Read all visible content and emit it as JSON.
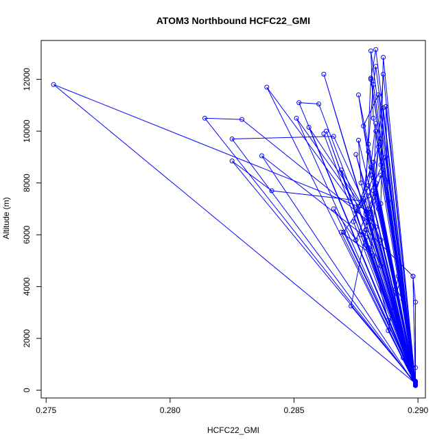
{
  "chart_data": {
    "type": "line",
    "title": "ATOM3 Northbound HCFC22_GMI",
    "xlabel": "HCFC22_GMI",
    "ylabel": "Altitude (m)",
    "xlim": [
      0.2748,
      0.2903
    ],
    "ylim": [
      -300,
      13500
    ],
    "x_ticks": [
      {
        "value": 0.275,
        "label": "0.275"
      },
      {
        "value": 0.28,
        "label": "0.280"
      },
      {
        "value": 0.285,
        "label": "0.285"
      },
      {
        "value": 0.29,
        "label": "0.290"
      }
    ],
    "y_ticks": [
      {
        "value": 0,
        "label": "0"
      },
      {
        "value": 2000,
        "label": "2000"
      },
      {
        "value": 4000,
        "label": "4000"
      },
      {
        "value": 6000,
        "label": "6000"
      },
      {
        "value": 8000,
        "label": "8000"
      },
      {
        "value": 10000,
        "label": "10000"
      },
      {
        "value": 12000,
        "label": "12000"
      }
    ],
    "grid": false,
    "legend": "none",
    "color": "#0000ff",
    "marker": "open-circle",
    "series": [
      {
        "x": [
          0.2899,
          0.2879,
          0.2875,
          0.2882,
          0.2899
        ],
        "y": [
          250,
          5600,
          6900,
          8200,
          300
        ]
      },
      {
        "x": [
          0.2899,
          0.2885,
          0.2879,
          0.2898,
          0.2899
        ],
        "y": [
          200,
          4800,
          6200,
          4400,
          350
        ]
      },
      {
        "x": [
          0.2899,
          0.2873,
          0.288,
          0.2899
        ],
        "y": [
          280,
          3250,
          6600,
          220
        ]
      },
      {
        "x": [
          0.2899,
          0.2888,
          0.2881,
          0.2883,
          0.2899
        ],
        "y": [
          180,
          2700,
          5300,
          7600,
          260
        ]
      },
      {
        "x": [
          0.2899,
          0.2878,
          0.2882,
          0.2885,
          0.2899
        ],
        "y": [
          300,
          6100,
          7300,
          8300,
          210
        ]
      },
      {
        "x": [
          0.2899,
          0.2875,
          0.288,
          0.2886,
          0.2899
        ],
        "y": [
          240,
          5800,
          7000,
          8500,
          240
        ]
      },
      {
        "x": [
          0.2899,
          0.287,
          0.288,
          0.2887,
          0.2899
        ],
        "y": [
          320,
          6100,
          7500,
          9000,
          200
        ]
      },
      {
        "x": [
          0.2899,
          0.2884,
          0.2882,
          0.2885,
          0.2899
        ],
        "y": [
          200,
          7000,
          8800,
          9700,
          280
        ]
      },
      {
        "x": [
          0.2899,
          0.2874,
          0.2881,
          0.2899
        ],
        "y": [
          260,
          6500,
          8600,
          230
        ]
      },
      {
        "x": [
          0.2899,
          0.288,
          0.2883,
          0.2899
        ],
        "y": [
          220,
          7900,
          10300,
          300
        ]
      },
      {
        "x": [
          0.2899,
          0.2885,
          0.2886,
          0.2899
        ],
        "y": [
          310,
          7200,
          10900,
          190
        ]
      },
      {
        "x": [
          0.2899,
          0.2882,
          0.2883,
          0.2899
        ],
        "y": [
          270,
          7700,
          10000,
          260
        ]
      },
      {
        "x": [
          0.2899,
          0.2881,
          0.2884,
          0.2899
        ],
        "y": [
          180,
          6800,
          9400,
          340
        ]
      },
      {
        "x": [
          0.2899,
          0.2878,
          0.288,
          0.2899
        ],
        "y": [
          240,
          7400,
          9200,
          210
        ]
      },
      {
        "x": [
          0.2899,
          0.2888,
          0.2887,
          0.2899
        ],
        "y": [
          300,
          7300,
          10950,
          260
        ]
      },
      {
        "x": [
          0.2899,
          0.2877,
          0.2876,
          0.2899
        ],
        "y": [
          230,
          8000,
          9650,
          230
        ]
      },
      {
        "x": [
          0.2899,
          0.2879,
          0.2875,
          0.2899
        ],
        "y": [
          290,
          7800,
          9100,
          200
        ]
      },
      {
        "x": [
          0.2899,
          0.2869,
          0.2879,
          0.2899
        ],
        "y": [
          200,
          8500,
          6900,
          280
        ]
      },
      {
        "x": [
          0.2899,
          0.2886,
          0.2885,
          0.2899
        ],
        "y": [
          260,
          12850,
          8700,
          310
        ]
      },
      {
        "x": [
          0.2899,
          0.2883,
          0.2881,
          0.2899
        ],
        "y": [
          210,
          13150,
          12000,
          230
        ]
      },
      {
        "x": [
          0.2899,
          0.2881,
          0.2882,
          0.2899
        ],
        "y": [
          330,
          13100,
          10500,
          220
        ]
      },
      {
        "x": [
          0.2899,
          0.2886,
          0.2883,
          0.2899
        ],
        "y": [
          190,
          12200,
          8000,
          260
        ]
      },
      {
        "x": [
          0.2899,
          0.2883,
          0.2882,
          0.2899
        ],
        "y": [
          250,
          12500,
          11800,
          300
        ]
      },
      {
        "x": [
          0.2899,
          0.2881,
          0.2879,
          0.2899
        ],
        "y": [
          280,
          12050,
          7800,
          210
        ]
      },
      {
        "x": [
          0.2899,
          0.2882,
          0.288,
          0.2899
        ],
        "y": [
          240,
          11800,
          9500,
          250
        ]
      },
      {
        "x": [
          0.2899,
          0.2884,
          0.2878,
          0.2899
        ],
        "y": [
          220,
          11400,
          10200,
          270
        ]
      },
      {
        "x": [
          0.2899,
          0.2876,
          0.2881,
          0.2899
        ],
        "y": [
          200,
          11400,
          8300,
          290
        ]
      },
      {
        "x": [
          0.2899,
          0.2862,
          0.2879,
          0.2899
        ],
        "y": [
          300,
          12200,
          6800,
          230
        ]
      },
      {
        "x": [
          0.2899,
          0.2839,
          0.2879,
          0.2899
        ],
        "y": [
          210,
          11700,
          6500,
          260
        ]
      },
      {
        "x": [
          0.2899,
          0.2852,
          0.286,
          0.2879,
          0.2899
        ],
        "y": [
          270,
          11100,
          11050,
          6200,
          220
        ]
      },
      {
        "x": [
          0.2899,
          0.2851,
          0.2876,
          0.2899
        ],
        "y": [
          230,
          10500,
          7100,
          300
        ]
      },
      {
        "x": [
          0.2899,
          0.2856,
          0.288,
          0.2899
        ],
        "y": [
          190,
          10150,
          6700,
          240
        ]
      },
      {
        "x": [
          0.2899,
          0.2862,
          0.2877,
          0.2899
        ],
        "y": [
          260,
          9900,
          6000,
          280
        ]
      },
      {
        "x": [
          0.2899,
          0.2863,
          0.288,
          0.2899
        ],
        "y": [
          310,
          10000,
          5500,
          200
        ]
      },
      {
        "x": [
          0.2899,
          0.2814,
          0.2829,
          0.2883,
          0.2899
        ],
        "y": [
          240,
          10500,
          10450,
          6300,
          260
        ]
      },
      {
        "x": [
          0.2899,
          0.2825,
          0.2866,
          0.2885,
          0.2899
        ],
        "y": [
          220,
          9700,
          9800,
          5800,
          230
        ]
      },
      {
        "x": [
          0.2899,
          0.2825,
          0.2841,
          0.2878,
          0.2899
        ],
        "y": [
          280,
          8850,
          7700,
          7300,
          210
        ]
      },
      {
        "x": [
          0.2899,
          0.2837,
          0.2879,
          0.2899
        ],
        "y": [
          200,
          9050,
          5900,
          290
        ]
      },
      {
        "x": [
          0.2899,
          0.2753,
          0.2881,
          0.2899
        ],
        "y": [
          260,
          11800,
          6900,
          240
        ]
      },
      {
        "x": [
          0.2899,
          0.2866,
          0.2875,
          0.2899
        ],
        "y": [
          300,
          7000,
          5800,
          220
        ]
      },
      {
        "x": [
          0.2899,
          0.2869,
          0.2882,
          0.2899
        ],
        "y": [
          230,
          6100,
          5200,
          280
        ]
      },
      {
        "x": [
          0.2899,
          0.2893,
          0.289,
          0.2899
        ],
        "y": [
          210,
          4250,
          3400,
          300
        ]
      },
      {
        "x": [
          0.2899,
          0.2894,
          0.2891,
          0.2899
        ],
        "y": [
          270,
          3500,
          3900,
          200
        ]
      },
      {
        "x": [
          0.2899,
          0.2898,
          0.2899,
          0.2899
        ],
        "y": [
          190,
          4400,
          3400,
          260
        ]
      },
      {
        "x": [
          0.2899,
          0.2892,
          0.2888,
          0.2899
        ],
        "y": [
          320,
          4400,
          2300,
          240
        ]
      },
      {
        "x": [
          0.2899,
          0.2894,
          0.2899
        ],
        "y": [
          230,
          1250,
          870
        ]
      }
    ]
  }
}
